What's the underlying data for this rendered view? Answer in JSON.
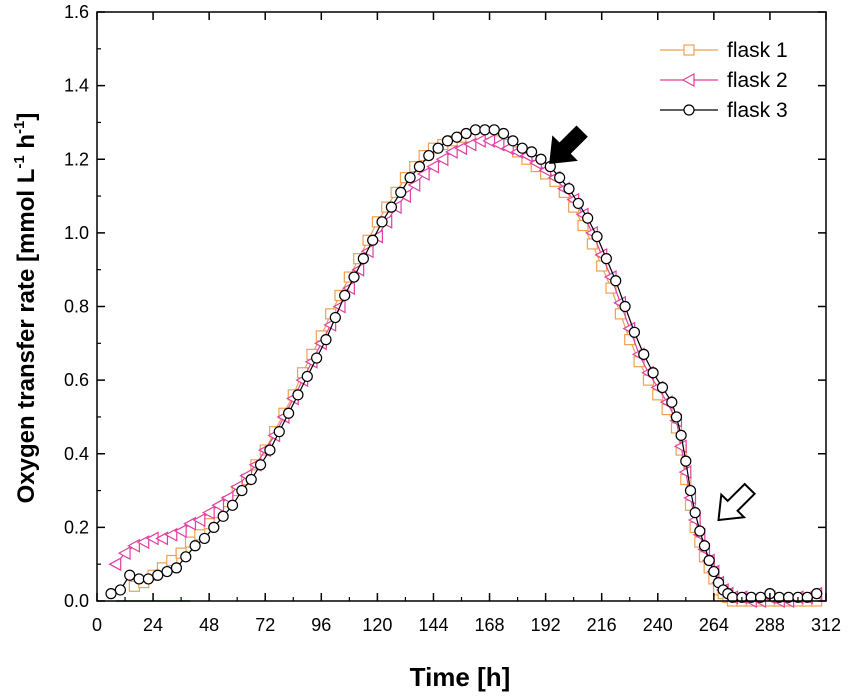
{
  "chart_data": {
    "type": "scatter",
    "xlabel": "Time   [h]",
    "ylabel_main": "Oxygen transfer rate  [mmol L",
    "ylabel_sup1": "-1",
    "ylabel_mid": " h",
    "ylabel_sup2": "-1",
    "ylabel_end": "]",
    "xlim": [
      0,
      312
    ],
    "ylim": [
      0,
      1.6
    ],
    "xticks": [
      0,
      24,
      48,
      72,
      96,
      120,
      144,
      168,
      192,
      216,
      240,
      264,
      288,
      312
    ],
    "yticks": [
      0.0,
      0.2,
      0.4,
      0.6,
      0.8,
      1.0,
      1.2,
      1.4,
      1.6
    ],
    "xtick_labels": [
      "0",
      "24",
      "48",
      "72",
      "96",
      "120",
      "144",
      "168",
      "192",
      "216",
      "240",
      "264",
      "288",
      "312"
    ],
    "ytick_labels": [
      "0.0",
      "0.2",
      "0.4",
      "0.6",
      "0.8",
      "1.0",
      "1.2",
      "1.4",
      "1.6"
    ],
    "grid": false,
    "legend_position": "top-right",
    "series": [
      {
        "name": "flask 1",
        "marker": "square",
        "color": "#f0a050",
        "x": [
          16,
          20,
          24,
          28,
          32,
          36,
          40,
          44,
          48,
          52,
          56,
          60,
          64,
          68,
          72,
          76,
          80,
          84,
          88,
          92,
          96,
          100,
          104,
          108,
          112,
          116,
          120,
          124,
          128,
          132,
          136,
          140,
          144,
          148,
          152,
          156,
          160,
          164,
          168,
          172,
          176,
          180,
          184,
          188,
          192,
          196,
          200,
          204,
          208,
          212,
          216,
          220,
          224,
          228,
          232,
          236,
          240,
          244,
          248,
          250,
          252,
          254,
          256,
          258,
          260,
          262,
          264,
          266,
          268,
          270,
          272,
          276,
          280,
          284,
          288,
          292,
          296,
          300,
          304,
          308
        ],
        "y": [
          0.04,
          0.05,
          0.07,
          0.09,
          0.11,
          0.13,
          0.16,
          0.18,
          0.21,
          0.24,
          0.27,
          0.3,
          0.33,
          0.37,
          0.41,
          0.46,
          0.51,
          0.56,
          0.62,
          0.67,
          0.72,
          0.78,
          0.83,
          0.88,
          0.93,
          0.98,
          1.03,
          1.07,
          1.11,
          1.15,
          1.18,
          1.21,
          1.23,
          1.24,
          1.25,
          1.26,
          1.26,
          1.26,
          1.27,
          1.25,
          1.24,
          1.22,
          1.2,
          1.18,
          1.16,
          1.14,
          1.11,
          1.07,
          1.02,
          0.97,
          0.91,
          0.85,
          0.78,
          0.71,
          0.65,
          0.6,
          0.56,
          0.52,
          0.47,
          0.41,
          0.33,
          0.26,
          0.2,
          0.16,
          0.12,
          0.09,
          0.06,
          0.03,
          0.02,
          0.01,
          0.0,
          0.0,
          0.0,
          0.0,
          0.0,
          0.0,
          0.0,
          0.0,
          0.0,
          0.0
        ]
      },
      {
        "name": "flask 2",
        "marker": "triangle-left",
        "color": "#e040a0",
        "x": [
          8,
          12,
          16,
          20,
          24,
          28,
          32,
          36,
          40,
          44,
          48,
          52,
          56,
          60,
          64,
          68,
          72,
          76,
          80,
          84,
          88,
          92,
          96,
          100,
          104,
          108,
          112,
          116,
          120,
          124,
          128,
          132,
          136,
          140,
          144,
          148,
          152,
          156,
          160,
          164,
          168,
          172,
          176,
          180,
          184,
          188,
          192,
          196,
          200,
          204,
          208,
          212,
          216,
          220,
          224,
          228,
          232,
          236,
          240,
          244,
          248,
          250,
          252,
          254,
          256,
          258,
          260,
          262,
          264,
          266,
          268,
          270,
          272,
          276,
          280,
          284,
          288,
          292,
          296,
          300,
          304,
          308
        ],
        "y": [
          0.1,
          0.13,
          0.15,
          0.16,
          0.17,
          0.17,
          0.18,
          0.19,
          0.21,
          0.22,
          0.24,
          0.26,
          0.28,
          0.31,
          0.34,
          0.37,
          0.41,
          0.45,
          0.5,
          0.55,
          0.6,
          0.65,
          0.7,
          0.75,
          0.8,
          0.85,
          0.9,
          0.95,
          0.99,
          1.03,
          1.07,
          1.1,
          1.13,
          1.16,
          1.18,
          1.2,
          1.22,
          1.23,
          1.24,
          1.25,
          1.25,
          1.24,
          1.23,
          1.22,
          1.21,
          1.19,
          1.17,
          1.15,
          1.12,
          1.09,
          1.05,
          1.0,
          0.94,
          0.88,
          0.81,
          0.74,
          0.67,
          0.62,
          0.58,
          0.54,
          0.49,
          0.42,
          0.35,
          0.28,
          0.22,
          0.18,
          0.14,
          0.11,
          0.08,
          0.05,
          0.03,
          0.02,
          0.01,
          0.01,
          0.0,
          0.0,
          0.01,
          0.0,
          0.0,
          0.01,
          0.01,
          0.02
        ]
      },
      {
        "name": "flask 3",
        "marker": "circle",
        "color": "#000000",
        "x": [
          6,
          10,
          14,
          18,
          22,
          26,
          30,
          34,
          38,
          42,
          46,
          50,
          54,
          58,
          62,
          66,
          70,
          74,
          78,
          82,
          86,
          90,
          94,
          98,
          102,
          106,
          110,
          114,
          118,
          122,
          126,
          130,
          134,
          138,
          142,
          146,
          150,
          154,
          158,
          162,
          166,
          170,
          174,
          178,
          182,
          186,
          190,
          194,
          198,
          202,
          206,
          210,
          214,
          218,
          222,
          226,
          230,
          234,
          238,
          242,
          246,
          248,
          250,
          252,
          254,
          256,
          258,
          260,
          262,
          264,
          266,
          268,
          270,
          272,
          276,
          280,
          284,
          288,
          292,
          296,
          300,
          304,
          308
        ],
        "y": [
          0.02,
          0.03,
          0.07,
          0.06,
          0.06,
          0.07,
          0.08,
          0.09,
          0.12,
          0.15,
          0.17,
          0.2,
          0.23,
          0.26,
          0.3,
          0.33,
          0.37,
          0.41,
          0.46,
          0.51,
          0.56,
          0.61,
          0.66,
          0.71,
          0.77,
          0.83,
          0.88,
          0.93,
          0.98,
          1.03,
          1.07,
          1.11,
          1.15,
          1.18,
          1.21,
          1.23,
          1.25,
          1.26,
          1.27,
          1.28,
          1.28,
          1.28,
          1.27,
          1.25,
          1.23,
          1.22,
          1.2,
          1.18,
          1.15,
          1.12,
          1.08,
          1.04,
          0.99,
          0.93,
          0.87,
          0.8,
          0.73,
          0.67,
          0.62,
          0.58,
          0.54,
          0.5,
          0.45,
          0.38,
          0.3,
          0.24,
          0.19,
          0.15,
          0.11,
          0.08,
          0.05,
          0.03,
          0.02,
          0.01,
          0.01,
          0.01,
          0.01,
          0.02,
          0.01,
          0.01,
          0.01,
          0.01,
          0.02
        ]
      }
    ],
    "annotations": [
      {
        "type": "arrow",
        "style": "filled",
        "color": "#000000",
        "target_x": 194,
        "target_y": 1.19
      },
      {
        "type": "arrow",
        "style": "outline",
        "color": "#000000",
        "target_x": 266,
        "target_y": 0.22
      }
    ]
  }
}
